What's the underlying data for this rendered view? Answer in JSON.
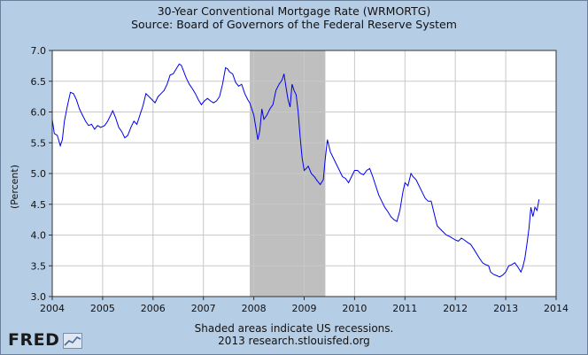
{
  "title": "30-Year Conventional Mortgage Rate (WRMORTG)",
  "subtitle": "Source: Board of Governors of the Federal Reserve System",
  "footer": {
    "note": "Shaded areas indicate US recessions.",
    "credit": "2013 research.stlouisfed.org"
  },
  "logo": {
    "text": "FRED",
    "icon": "chart-line-icon"
  },
  "colors": {
    "background": "#b6cde6",
    "plot": "#ffffff",
    "line": "#0000ee",
    "recession": "#bfbfbf",
    "grid": "#c8c8c8"
  },
  "chart_data": {
    "type": "line",
    "title": "30-Year Conventional Mortgage Rate (WRMORTG)",
    "ylabel": "(Percent)",
    "xlabel": "",
    "xlim": [
      2004,
      2014
    ],
    "ylim": [
      3.0,
      7.0
    ],
    "x_ticks": [
      "2004",
      "2005",
      "2006",
      "2007",
      "2008",
      "2009",
      "2010",
      "2011",
      "2012",
      "2013",
      "2014"
    ],
    "y_ticks": [
      "3.0",
      "3.5",
      "4.0",
      "4.5",
      "5.0",
      "5.5",
      "6.0",
      "6.5",
      "7.0"
    ],
    "grid": true,
    "recessions": [
      [
        2007.92,
        2009.42
      ]
    ],
    "series": [
      {
        "name": "WRMORTG",
        "points": [
          [
            2004.0,
            5.88
          ],
          [
            2004.04,
            5.65
          ],
          [
            2004.1,
            5.62
          ],
          [
            2004.16,
            5.45
          ],
          [
            2004.2,
            5.55
          ],
          [
            2004.24,
            5.85
          ],
          [
            2004.3,
            6.1
          ],
          [
            2004.36,
            6.32
          ],
          [
            2004.42,
            6.3
          ],
          [
            2004.48,
            6.2
          ],
          [
            2004.54,
            6.05
          ],
          [
            2004.6,
            5.95
          ],
          [
            2004.66,
            5.85
          ],
          [
            2004.72,
            5.78
          ],
          [
            2004.78,
            5.8
          ],
          [
            2004.84,
            5.72
          ],
          [
            2004.9,
            5.78
          ],
          [
            2004.96,
            5.75
          ],
          [
            2005.04,
            5.78
          ],
          [
            2005.1,
            5.85
          ],
          [
            2005.16,
            5.95
          ],
          [
            2005.2,
            6.02
          ],
          [
            2005.26,
            5.9
          ],
          [
            2005.32,
            5.75
          ],
          [
            2005.38,
            5.68
          ],
          [
            2005.44,
            5.58
          ],
          [
            2005.5,
            5.62
          ],
          [
            2005.56,
            5.75
          ],
          [
            2005.62,
            5.85
          ],
          [
            2005.68,
            5.8
          ],
          [
            2005.74,
            5.95
          ],
          [
            2005.8,
            6.1
          ],
          [
            2005.86,
            6.3
          ],
          [
            2005.92,
            6.25
          ],
          [
            2005.98,
            6.2
          ],
          [
            2006.04,
            6.15
          ],
          [
            2006.1,
            6.25
          ],
          [
            2006.16,
            6.3
          ],
          [
            2006.22,
            6.35
          ],
          [
            2006.28,
            6.45
          ],
          [
            2006.34,
            6.6
          ],
          [
            2006.4,
            6.62
          ],
          [
            2006.46,
            6.7
          ],
          [
            2006.52,
            6.78
          ],
          [
            2006.56,
            6.76
          ],
          [
            2006.6,
            6.68
          ],
          [
            2006.66,
            6.55
          ],
          [
            2006.72,
            6.45
          ],
          [
            2006.78,
            6.38
          ],
          [
            2006.84,
            6.3
          ],
          [
            2006.9,
            6.2
          ],
          [
            2006.96,
            6.12
          ],
          [
            2007.02,
            6.18
          ],
          [
            2007.08,
            6.22
          ],
          [
            2007.14,
            6.18
          ],
          [
            2007.2,
            6.15
          ],
          [
            2007.26,
            6.18
          ],
          [
            2007.32,
            6.25
          ],
          [
            2007.38,
            6.45
          ],
          [
            2007.44,
            6.72
          ],
          [
            2007.48,
            6.7
          ],
          [
            2007.52,
            6.65
          ],
          [
            2007.58,
            6.62
          ],
          [
            2007.64,
            6.48
          ],
          [
            2007.7,
            6.42
          ],
          [
            2007.76,
            6.45
          ],
          [
            2007.82,
            6.3
          ],
          [
            2007.88,
            6.2
          ],
          [
            2007.92,
            6.15
          ],
          [
            2007.96,
            6.05
          ],
          [
            2008.0,
            5.95
          ],
          [
            2008.04,
            5.75
          ],
          [
            2008.08,
            5.55
          ],
          [
            2008.12,
            5.7
          ],
          [
            2008.16,
            6.05
          ],
          [
            2008.2,
            5.88
          ],
          [
            2008.26,
            5.95
          ],
          [
            2008.32,
            6.05
          ],
          [
            2008.38,
            6.12
          ],
          [
            2008.44,
            6.35
          ],
          [
            2008.5,
            6.45
          ],
          [
            2008.56,
            6.52
          ],
          [
            2008.6,
            6.62
          ],
          [
            2008.64,
            6.4
          ],
          [
            2008.68,
            6.2
          ],
          [
            2008.72,
            6.08
          ],
          [
            2008.76,
            6.45
          ],
          [
            2008.8,
            6.35
          ],
          [
            2008.84,
            6.28
          ],
          [
            2008.88,
            6.0
          ],
          [
            2008.92,
            5.6
          ],
          [
            2008.96,
            5.25
          ],
          [
            2009.0,
            5.05
          ],
          [
            2009.04,
            5.08
          ],
          [
            2009.08,
            5.12
          ],
          [
            2009.14,
            5.0
          ],
          [
            2009.2,
            4.95
          ],
          [
            2009.26,
            4.88
          ],
          [
            2009.32,
            4.82
          ],
          [
            2009.38,
            4.9
          ],
          [
            2009.42,
            5.25
          ],
          [
            2009.46,
            5.55
          ],
          [
            2009.52,
            5.35
          ],
          [
            2009.58,
            5.25
          ],
          [
            2009.64,
            5.15
          ],
          [
            2009.7,
            5.05
          ],
          [
            2009.76,
            4.95
          ],
          [
            2009.82,
            4.92
          ],
          [
            2009.88,
            4.85
          ],
          [
            2009.94,
            4.95
          ],
          [
            2010.0,
            5.05
          ],
          [
            2010.06,
            5.05
          ],
          [
            2010.12,
            5.0
          ],
          [
            2010.18,
            4.98
          ],
          [
            2010.24,
            5.05
          ],
          [
            2010.3,
            5.08
          ],
          [
            2010.36,
            4.95
          ],
          [
            2010.42,
            4.8
          ],
          [
            2010.48,
            4.65
          ],
          [
            2010.54,
            4.55
          ],
          [
            2010.6,
            4.45
          ],
          [
            2010.66,
            4.38
          ],
          [
            2010.72,
            4.3
          ],
          [
            2010.78,
            4.25
          ],
          [
            2010.84,
            4.22
          ],
          [
            2010.9,
            4.4
          ],
          [
            2010.96,
            4.7
          ],
          [
            2011.0,
            4.85
          ],
          [
            2011.06,
            4.8
          ],
          [
            2011.12,
            5.0
          ],
          [
            2011.16,
            4.95
          ],
          [
            2011.22,
            4.9
          ],
          [
            2011.28,
            4.8
          ],
          [
            2011.34,
            4.7
          ],
          [
            2011.4,
            4.6
          ],
          [
            2011.46,
            4.55
          ],
          [
            2011.52,
            4.55
          ],
          [
            2011.58,
            4.35
          ],
          [
            2011.64,
            4.15
          ],
          [
            2011.7,
            4.1
          ],
          [
            2011.76,
            4.05
          ],
          [
            2011.82,
            4.0
          ],
          [
            2011.88,
            3.98
          ],
          [
            2011.94,
            3.95
          ],
          [
            2012.0,
            3.92
          ],
          [
            2012.06,
            3.9
          ],
          [
            2012.12,
            3.95
          ],
          [
            2012.18,
            3.92
          ],
          [
            2012.24,
            3.88
          ],
          [
            2012.3,
            3.85
          ],
          [
            2012.36,
            3.78
          ],
          [
            2012.42,
            3.7
          ],
          [
            2012.48,
            3.62
          ],
          [
            2012.54,
            3.55
          ],
          [
            2012.6,
            3.52
          ],
          [
            2012.66,
            3.5
          ],
          [
            2012.7,
            3.4
          ],
          [
            2012.76,
            3.36
          ],
          [
            2012.82,
            3.34
          ],
          [
            2012.88,
            3.32
          ],
          [
            2012.94,
            3.35
          ],
          [
            2013.0,
            3.4
          ],
          [
            2013.06,
            3.5
          ],
          [
            2013.12,
            3.52
          ],
          [
            2013.18,
            3.55
          ],
          [
            2013.24,
            3.48
          ],
          [
            2013.3,
            3.4
          ],
          [
            2013.34,
            3.48
          ],
          [
            2013.38,
            3.62
          ],
          [
            2013.42,
            3.85
          ],
          [
            2013.46,
            4.1
          ],
          [
            2013.5,
            4.45
          ],
          [
            2013.54,
            4.3
          ],
          [
            2013.58,
            4.45
          ],
          [
            2013.62,
            4.4
          ],
          [
            2013.66,
            4.58
          ]
        ]
      }
    ]
  }
}
